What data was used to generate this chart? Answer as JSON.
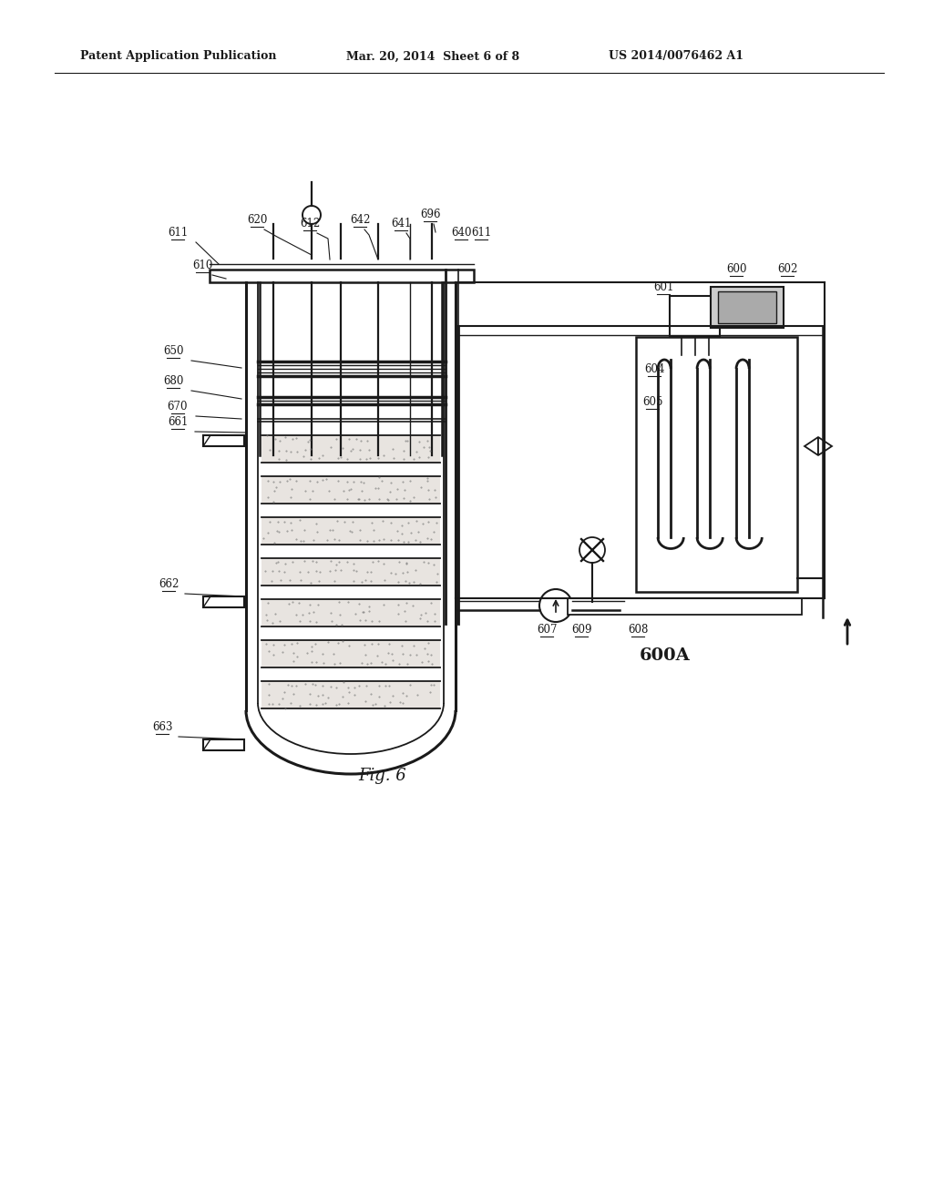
{
  "bg_color": "#ffffff",
  "line_color": "#1a1a1a",
  "header_text": "Patent Application Publication",
  "header_date": "Mar. 20, 2014  Sheet 6 of 8",
  "header_patent": "US 2014/0076462 A1"
}
